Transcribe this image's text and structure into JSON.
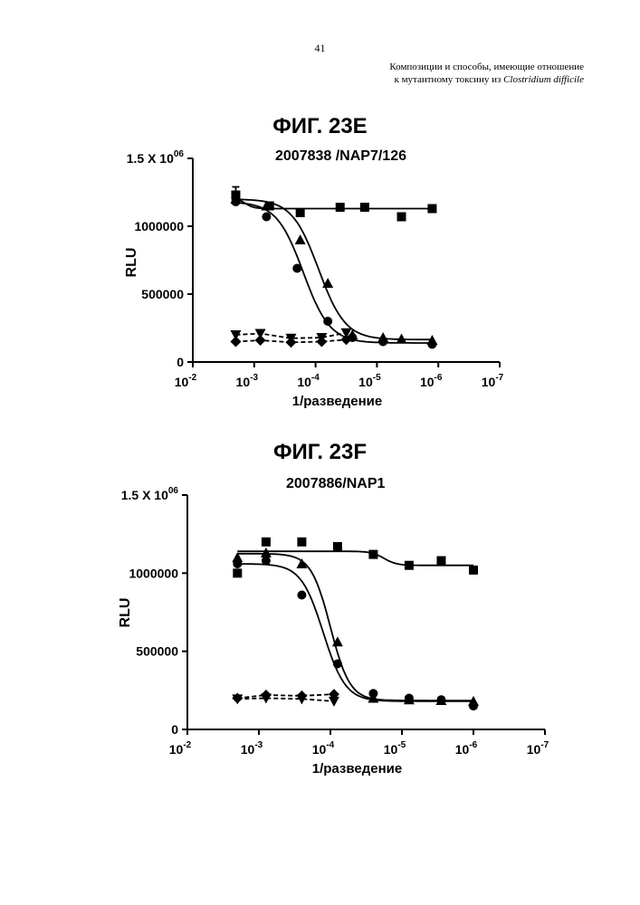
{
  "page": {
    "page_number": "41",
    "header_line1": "Композиции и способы, имеющие отношение",
    "header_line2_prefix": "к мутантному токсину из ",
    "header_line2_species": "Clostridium difficile"
  },
  "chart_data": [
    {
      "type": "scatter",
      "figure_label": "ФИГ. 23E",
      "title": "2007838 /NAP7/126",
      "xlabel": "1/разведение",
      "ylabel": "RLU",
      "x_scale": "log10-reversed",
      "xlim_exponent": [
        -2,
        -7
      ],
      "ylim": [
        0,
        1500000
      ],
      "x_tick_bases": [
        "10",
        "10",
        "10",
        "10",
        "10",
        "10"
      ],
      "x_tick_exponents": [
        "-2",
        "-3",
        "-4",
        "-5",
        "-6",
        "-7"
      ],
      "y_ticks": [
        "0",
        "500000",
        "1000000"
      ],
      "y_top_label_base": "1.5 X 10",
      "y_top_label_exp": "06",
      "series": [
        {
          "name": "square",
          "marker": "square",
          "line": "solid",
          "x_exp": [
            -2.7,
            -3.25,
            -3.75,
            -4.4,
            -4.8,
            -5.4,
            -5.9
          ],
          "y": [
            1230000,
            1150000,
            1100000,
            1140000,
            1140000,
            1070000,
            1130000
          ],
          "curve": {
            "top": 1210000,
            "bottom": 1130000,
            "mid": -2.85,
            "slope": 6
          }
        },
        {
          "name": "circle",
          "marker": "circle",
          "line": "solid",
          "x_exp": [
            -2.7,
            -3.2,
            -3.7,
            -4.2,
            -4.6,
            -5.1,
            -5.9
          ],
          "y": [
            1180000,
            1070000,
            690000,
            300000,
            180000,
            150000,
            130000
          ],
          "curve": {
            "top": 1180000,
            "bottom": 140000,
            "mid": -3.8,
            "slope": 2
          }
        },
        {
          "name": "triangle-up",
          "marker": "triangle-up",
          "line": "solid",
          "x_exp": [
            -2.7,
            -3.2,
            -3.75,
            -4.2,
            -4.6,
            -5.1,
            -5.4,
            -5.9
          ],
          "y": [
            1200000,
            1150000,
            900000,
            580000,
            200000,
            180000,
            170000,
            160000
          ],
          "curve": {
            "top": 1200000,
            "bottom": 165000,
            "mid": -4.05,
            "slope": 2
          }
        },
        {
          "name": "triangle-down",
          "marker": "triangle-down",
          "line": "dashed",
          "x_exp": [
            -2.7,
            -3.1,
            -3.6,
            -4.1,
            -4.5
          ],
          "y": [
            200000,
            210000,
            175000,
            180000,
            215000
          ],
          "curve": null
        },
        {
          "name": "diamond",
          "marker": "diamond",
          "line": "dashed",
          "x_exp": [
            -2.7,
            -3.1,
            -3.6,
            -4.1,
            -4.5
          ],
          "y": [
            150000,
            160000,
            145000,
            150000,
            165000
          ],
          "curve": null
        },
        {
          "name": "error-bar-top",
          "marker": "none",
          "line": "none",
          "x_exp": [
            -2.7
          ],
          "y": [
            1230000
          ],
          "error": [
            60000
          ],
          "curve": null
        }
      ]
    },
    {
      "type": "scatter",
      "figure_label": "ФИГ. 23F",
      "title": "2007886/NAP1",
      "xlabel": "1/разведение",
      "ylabel": "RLU",
      "x_scale": "log10-reversed",
      "xlim_exponent": [
        -2,
        -7
      ],
      "ylim": [
        0,
        1500000
      ],
      "x_tick_bases": [
        "10",
        "10",
        "10",
        "10",
        "10",
        "10"
      ],
      "x_tick_exponents": [
        "-2",
        "-3",
        "-4",
        "-5",
        "-6",
        "-7"
      ],
      "y_ticks": [
        "0",
        "500000",
        "1000000"
      ],
      "y_top_label_base": "1.5 X 10",
      "y_top_label_exp": "06",
      "series": [
        {
          "name": "square",
          "marker": "square",
          "line": "solid",
          "x_exp": [
            -2.7,
            -3.1,
            -3.6,
            -4.1,
            -4.6,
            -5.1,
            -5.55,
            -6.0
          ],
          "y": [
            1000000,
            1200000,
            1200000,
            1170000,
            1120000,
            1050000,
            1080000,
            1020000
          ],
          "curve": {
            "top": 1140000,
            "bottom": 1050000,
            "mid": -4.75,
            "slope": 5
          }
        },
        {
          "name": "circle",
          "marker": "circle",
          "line": "solid",
          "x_exp": [
            -2.7,
            -3.1,
            -3.6,
            -4.1,
            -4.6,
            -5.1,
            -5.55,
            -6.0
          ],
          "y": [
            1060000,
            1080000,
            860000,
            420000,
            230000,
            200000,
            190000,
            150000
          ],
          "curve": {
            "top": 1060000,
            "bottom": 180000,
            "mid": -3.9,
            "slope": 2.8
          }
        },
        {
          "name": "triangle-up",
          "marker": "triangle-up",
          "line": "solid",
          "x_exp": [
            -2.7,
            -3.1,
            -3.6,
            -4.1,
            -4.6,
            -5.1,
            -5.55,
            -6.0
          ],
          "y": [
            1100000,
            1130000,
            1060000,
            560000,
            200000,
            190000,
            185000,
            180000
          ],
          "curve": {
            "top": 1125000,
            "bottom": 185000,
            "mid": -4.0,
            "slope": 3.2
          }
        },
        {
          "name": "triangle-down",
          "marker": "triangle-down",
          "line": "dashed",
          "x_exp": [
            -2.7,
            -3.1,
            -3.6,
            -4.05
          ],
          "y": [
            195000,
            200000,
            195000,
            180000
          ],
          "curve": null
        },
        {
          "name": "diamond",
          "marker": "diamond",
          "line": "dashed",
          "x_exp": [
            -2.7,
            -3.1,
            -3.6,
            -4.05
          ],
          "y": [
            200000,
            220000,
            215000,
            225000
          ],
          "curve": null
        }
      ]
    }
  ]
}
